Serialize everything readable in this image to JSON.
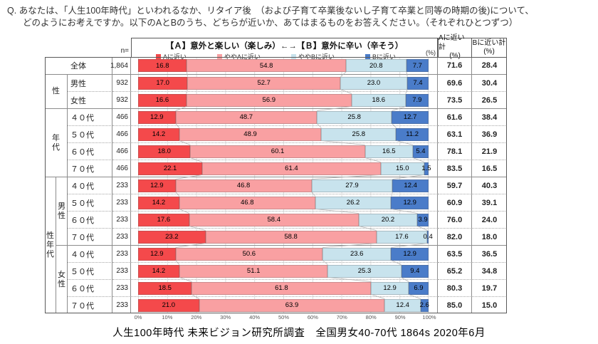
{
  "question": {
    "prefix": "Q.",
    "line1": "あなたは、「人生100年時代」といわれるなか、リタイア後　（および子育て卒業後ないし子育て卒業と同等の時期の後)について、",
    "line2": "どのようにお考えですか。以下のAとBのうち、どちらが近いか、あてはまるものをお答えください。（それぞれひとつずつ）"
  },
  "footer": "人生100年時代 未来ビジョン研究所調査　全国男女40-70代 1864s 2020年6月",
  "colors": {
    "series_a": "#f4494b",
    "series_yaya_a": "#f9a0a2",
    "series_yaya_b": "#c8e3ed",
    "series_b": "#4a7cc9",
    "gridline": "#dcdcdc",
    "border_outer": "#595959",
    "border_inner": "#8c8c8c",
    "connector": "#b3b3b3"
  },
  "chart_data": {
    "type": "bar",
    "variant": "horizontal-stacked-100pct",
    "title": "【Ａ】意外と楽しい（楽しみ）←→【Ｂ】意外に辛い（辛そう）",
    "unit_label": "(%)",
    "n_label": "n=",
    "xlim": [
      0,
      100
    ],
    "axis_ticks": [
      "0%",
      "10%",
      "20%",
      "30%",
      "40%",
      "50%",
      "60%",
      "70%",
      "80%",
      "90%",
      "100%"
    ],
    "legend_position": "top",
    "grid": true,
    "series": [
      {
        "name": "Aに近い",
        "color": "#f4494b"
      },
      {
        "name": "ややAに近い",
        "color": "#f9a0a2"
      },
      {
        "name": "ややBに近い",
        "color": "#c8e3ed"
      },
      {
        "name": "Bに近い",
        "color": "#4a7cc9"
      }
    ],
    "summary_cols": [
      {
        "line1": "Aに近い計",
        "line2": "(%)"
      },
      {
        "line1": "Bに近い計",
        "line2": "(%)"
      }
    ],
    "rows": [
      {
        "group": "",
        "subgroup": "",
        "label": "全体",
        "label_span": true,
        "n": "1,864",
        "values": [
          16.8,
          54.8,
          20.8,
          7.7
        ],
        "a_total": 71.6,
        "b_total": 28.4
      },
      {
        "group": "性",
        "subgroup": "",
        "label": "男性",
        "label_span": false,
        "n": "932",
        "values": [
          17.0,
          52.7,
          23.0,
          7.4
        ],
        "a_total": 69.6,
        "b_total": 30.4
      },
      {
        "group": "性",
        "subgroup": "",
        "label": "女性",
        "label_span": false,
        "n": "932",
        "values": [
          16.6,
          56.9,
          18.6,
          7.9
        ],
        "a_total": 73.5,
        "b_total": 26.5
      },
      {
        "group": "年代",
        "subgroup": "",
        "label": "４０代",
        "label_span": false,
        "n": "466",
        "values": [
          12.9,
          48.7,
          25.8,
          12.7
        ],
        "a_total": 61.6,
        "b_total": 38.4
      },
      {
        "group": "年代",
        "subgroup": "",
        "label": "５０代",
        "label_span": false,
        "n": "466",
        "values": [
          14.2,
          48.9,
          25.8,
          11.2
        ],
        "a_total": 63.1,
        "b_total": 36.9
      },
      {
        "group": "年代",
        "subgroup": "",
        "label": "６０代",
        "label_span": false,
        "n": "466",
        "values": [
          18.0,
          60.1,
          16.5,
          5.4
        ],
        "a_total": 78.1,
        "b_total": 21.9
      },
      {
        "group": "年代",
        "subgroup": "",
        "label": "７０代",
        "label_span": false,
        "n": "466",
        "values": [
          22.1,
          61.4,
          15.0,
          1.5
        ],
        "a_total": 83.5,
        "b_total": 16.5
      },
      {
        "group": "性年代",
        "subgroup": "男性",
        "label": "４０代",
        "label_span": false,
        "n": "233",
        "values": [
          12.9,
          46.8,
          27.9,
          12.4
        ],
        "a_total": 59.7,
        "b_total": 40.3
      },
      {
        "group": "性年代",
        "subgroup": "男性",
        "label": "５０代",
        "label_span": false,
        "n": "233",
        "values": [
          14.2,
          46.8,
          26.2,
          12.9
        ],
        "a_total": 60.9,
        "b_total": 39.1
      },
      {
        "group": "性年代",
        "subgroup": "男性",
        "label": "６０代",
        "label_span": false,
        "n": "233",
        "values": [
          17.6,
          58.4,
          20.2,
          3.9
        ],
        "a_total": 76.0,
        "b_total": 24.0
      },
      {
        "group": "性年代",
        "subgroup": "男性",
        "label": "７０代",
        "label_span": false,
        "n": "233",
        "values": [
          23.2,
          58.8,
          17.6,
          0.4
        ],
        "a_total": 82.0,
        "b_total": 18.0
      },
      {
        "group": "性年代",
        "subgroup": "女性",
        "label": "４０代",
        "label_span": false,
        "n": "233",
        "values": [
          12.9,
          50.6,
          23.6,
          12.9
        ],
        "a_total": 63.5,
        "b_total": 36.5
      },
      {
        "group": "性年代",
        "subgroup": "女性",
        "label": "５０代",
        "label_span": false,
        "n": "233",
        "values": [
          14.2,
          51.1,
          25.3,
          9.4
        ],
        "a_total": 65.2,
        "b_total": 34.8
      },
      {
        "group": "性年代",
        "subgroup": "女性",
        "label": "６０代",
        "label_span": false,
        "n": "233",
        "values": [
          18.5,
          61.8,
          12.9,
          6.9
        ],
        "a_total": 80.3,
        "b_total": 19.7
      },
      {
        "group": "性年代",
        "subgroup": "女性",
        "label": "７０代",
        "label_span": false,
        "n": "233",
        "values": [
          21.0,
          63.9,
          12.4,
          2.6
        ],
        "a_total": 85.0,
        "b_total": 15.0
      }
    ]
  }
}
